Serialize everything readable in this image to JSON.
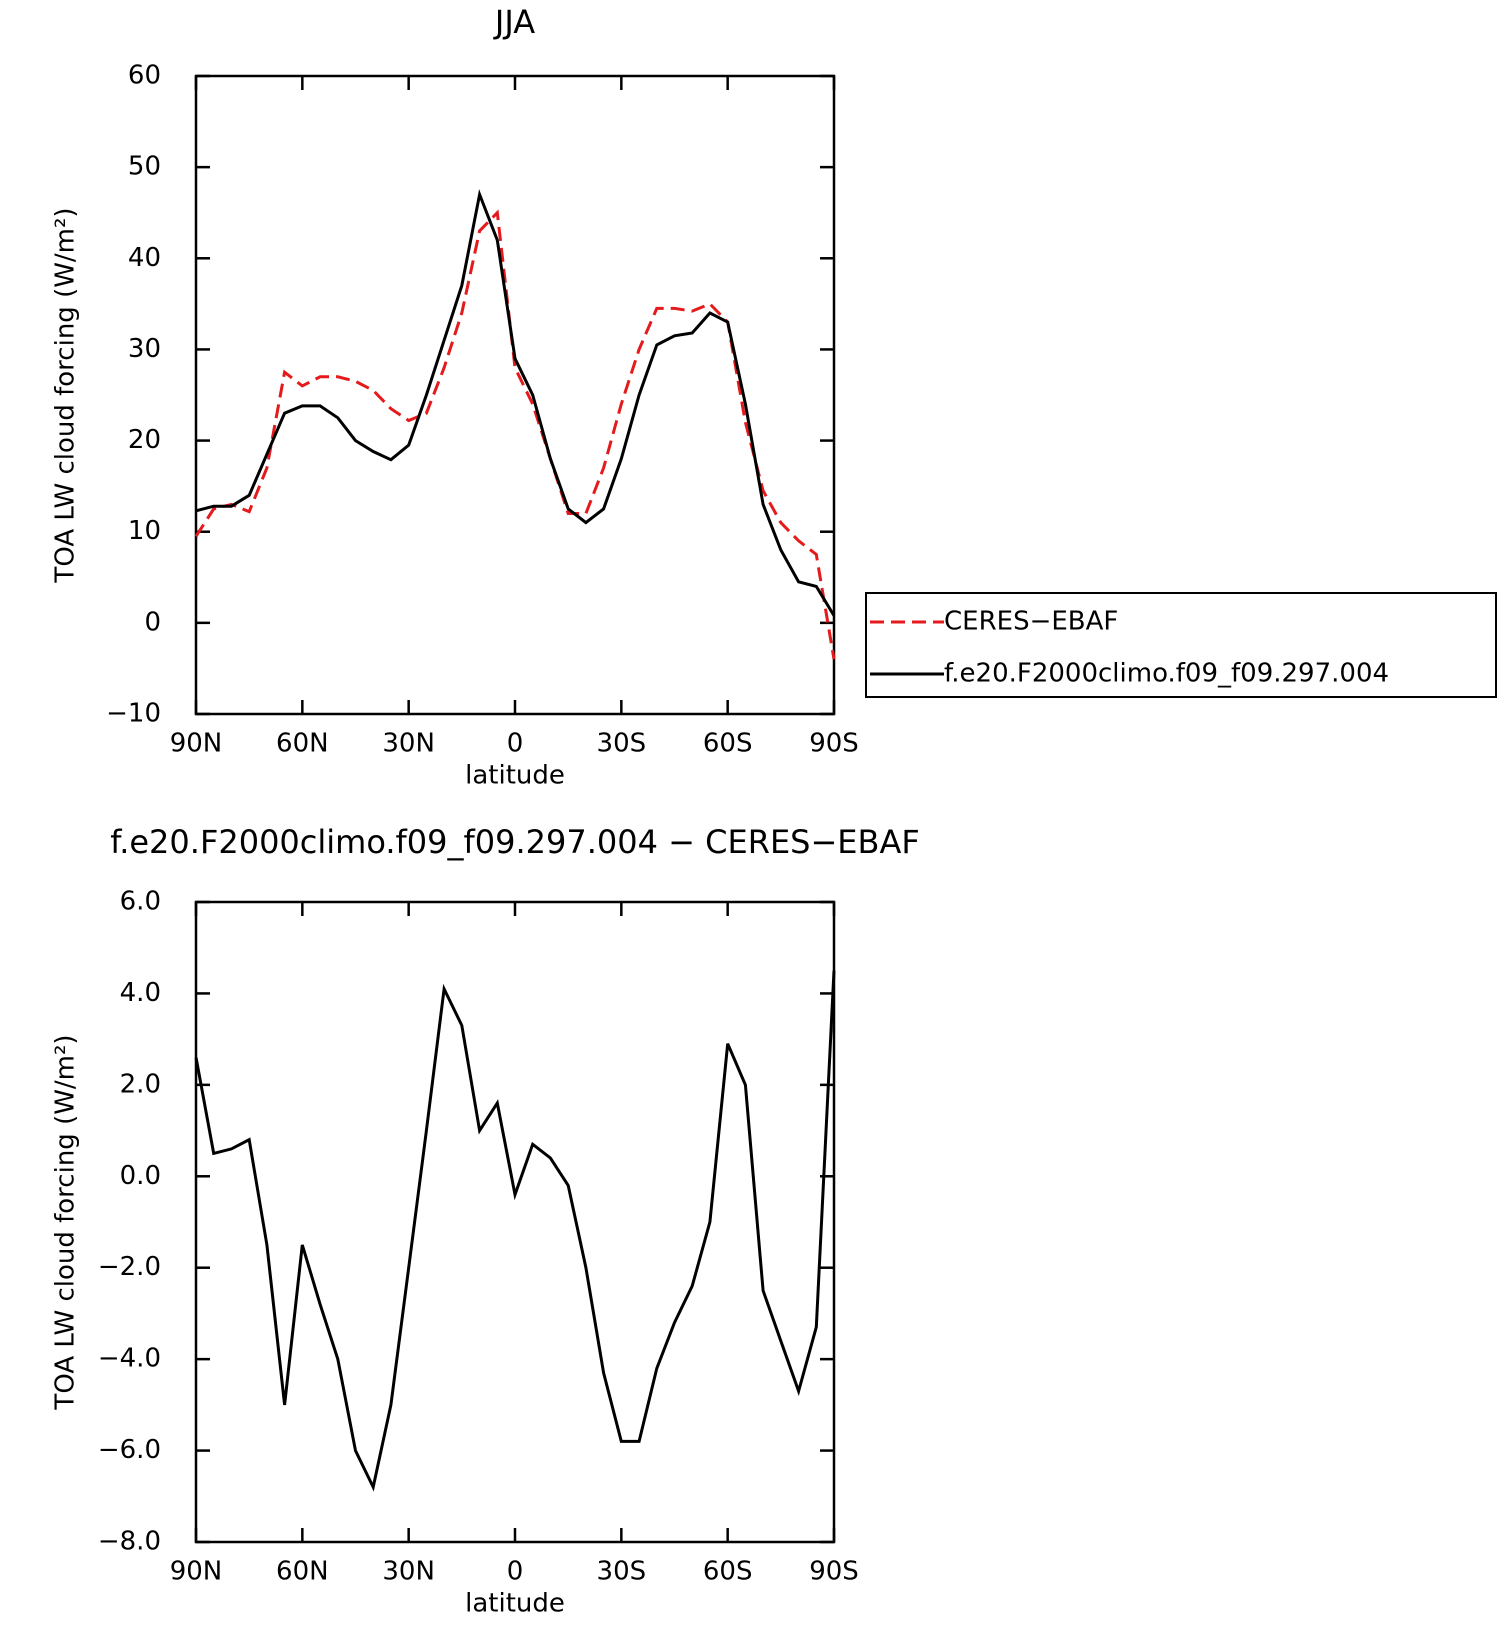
{
  "chart_data": [
    {
      "type": "line",
      "title": "JJA",
      "xlabel": "latitude",
      "ylabel": "TOA LW cloud forcing (W/m²)",
      "x": [
        90,
        85,
        80,
        75,
        70,
        65,
        60,
        55,
        50,
        45,
        40,
        35,
        30,
        25,
        20,
        15,
        10,
        5,
        0,
        -5,
        -10,
        -15,
        -20,
        -25,
        -30,
        -35,
        -40,
        -45,
        -50,
        -55,
        -60,
        -65,
        -70,
        -75,
        -80,
        -85,
        -90
      ],
      "series": [
        {
          "name": "CERES−EBAF",
          "color": "#e41a1c",
          "linestyle": "dashed",
          "values": [
            9.5,
            12.5,
            13,
            12.2,
            17,
            27.5,
            26,
            27,
            27,
            26.5,
            25.5,
            23.5,
            22.2,
            23,
            28,
            34,
            43,
            45,
            28,
            24,
            18,
            12,
            12,
            17,
            24,
            30,
            34.5,
            34.5,
            34.2,
            35,
            33,
            22,
            14.5,
            11,
            9,
            7.5,
            -4
          ]
        },
        {
          "name": "f.e20.F2000climo.f09_f09.297.004",
          "color": "#000000",
          "linestyle": "solid",
          "values": [
            12.3,
            12.8,
            12.8,
            14,
            18.5,
            23,
            23.8,
            23.8,
            22.5,
            20,
            18.8,
            17.9,
            19.5,
            25,
            31,
            37,
            47,
            42,
            29,
            25,
            18,
            12.5,
            11,
            12.5,
            18,
            25,
            30.5,
            31.5,
            31.8,
            34,
            33,
            24,
            13,
            8,
            4.5,
            4,
            0.8
          ]
        }
      ],
      "xlim": [
        90,
        -90
      ],
      "xticks": [
        {
          "value": 90,
          "label": "90N"
        },
        {
          "value": 60,
          "label": "60N"
        },
        {
          "value": 30,
          "label": "30N"
        },
        0,
        {
          "value": -30,
          "label": "30S"
        },
        {
          "value": -60,
          "label": "60S"
        },
        {
          "value": -90,
          "label": "90S"
        }
      ],
      "ylim": [
        -10,
        60
      ],
      "yticks": [
        {
          "value": -10,
          "label": "−10"
        },
        0,
        10,
        20,
        30,
        40,
        50,
        60
      ],
      "legend": "right"
    },
    {
      "type": "line",
      "title": "f.e20.F2000climo.f09_f09.297.004 − CERES−EBAF",
      "xlabel": "latitude",
      "ylabel": "TOA LW cloud forcing (W/m²)",
      "x": [
        90,
        85,
        80,
        75,
        70,
        65,
        60,
        55,
        50,
        45,
        40,
        35,
        30,
        25,
        20,
        15,
        10,
        5,
        0,
        -5,
        -10,
        -15,
        -20,
        -25,
        -30,
        -35,
        -40,
        -45,
        -50,
        -55,
        -60,
        -65,
        -70,
        -75,
        -80,
        -85,
        -90
      ],
      "color": "#000000",
      "values": [
        2.6,
        0.5,
        0.6,
        0.8,
        -1.5,
        -5.0,
        -1.5,
        -2.8,
        -4.0,
        -6.0,
        -6.8,
        -5.0,
        -2.0,
        1.0,
        4.1,
        3.3,
        1.0,
        1.6,
        -0.4,
        0.7,
        0.4,
        -0.2,
        -2.0,
        -4.3,
        -5.8,
        -5.8,
        -4.2,
        -3.2,
        -2.4,
        -1.0,
        2.9,
        2.0,
        -2.5,
        -3.6,
        -4.7,
        -3.3,
        4.5
      ],
      "xlim": [
        90,
        -90
      ],
      "xticks": [
        {
          "value": 90,
          "label": "90N"
        },
        {
          "value": 60,
          "label": "60N"
        },
        {
          "value": 30,
          "label": "30N"
        },
        0,
        {
          "value": -30,
          "label": "30S"
        },
        {
          "value": -60,
          "label": "60S"
        },
        {
          "value": -90,
          "label": "90S"
        }
      ],
      "ylim": [
        -8,
        6
      ],
      "yticks": [
        {
          "value": -8,
          "label": "−8.0"
        },
        {
          "value": -6,
          "label": "−6.0"
        },
        {
          "value": -4,
          "label": "−4.0"
        },
        {
          "value": -2,
          "label": "−2.0"
        },
        {
          "value": 0,
          "label": "0.0"
        },
        {
          "value": 2,
          "label": "2.0"
        },
        {
          "value": 4,
          "label": "4.0"
        },
        {
          "value": 6,
          "label": "6.0"
        }
      ]
    }
  ]
}
